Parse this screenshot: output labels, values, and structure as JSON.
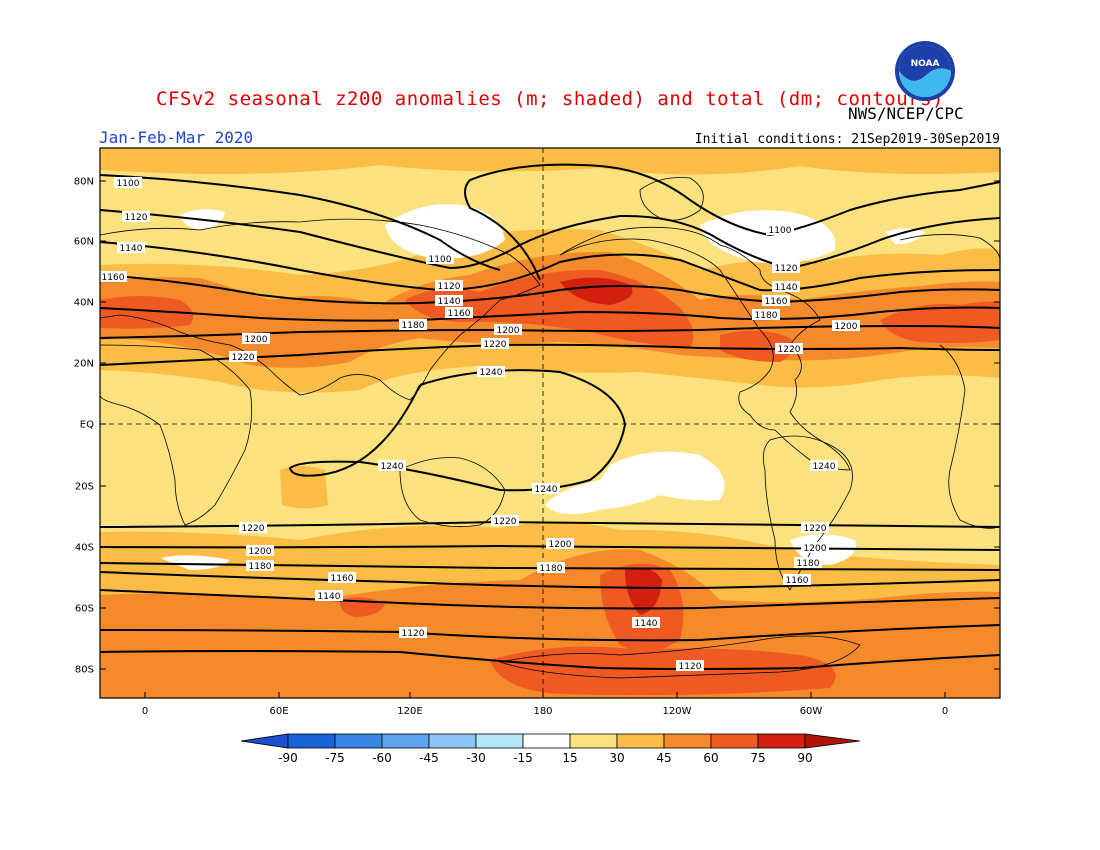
{
  "header": {
    "title": "CFSv2 seasonal z200 anomalies (m; shaded) and total (dm; contours)",
    "org": "NWS/NCEP/CPC",
    "season": "Jan-Feb-Mar 2020",
    "initial_conditions": "Initial conditions: 21Sep2019-30Sep2019",
    "logo_text": "NOAA"
  },
  "map": {
    "lat_labels": [
      "80N",
      "60N",
      "40N",
      "20N",
      "EQ",
      "20S",
      "40S",
      "60S",
      "80S"
    ],
    "lon_labels": [
      "0",
      "60E",
      "120E",
      "180",
      "120W",
      "60W",
      "0"
    ],
    "contours": [
      {
        "value": "1100"
      },
      {
        "value": "1120"
      },
      {
        "value": "1140"
      },
      {
        "value": "1160"
      },
      {
        "value": "1180"
      },
      {
        "value": "1200"
      },
      {
        "value": "1220"
      },
      {
        "value": "1240"
      }
    ],
    "colors": {
      "c15_30": "#fbe27e",
      "c30_45": "#fbbd45",
      "c45_60": "#f58a2c",
      "c60_75": "#ef5a22",
      "c75_90": "#d21f10",
      "cwhite": "#ffffff"
    }
  },
  "colorbar": {
    "ticks": [
      "-90",
      "-75",
      "-60",
      "-45",
      "-30",
      "-15",
      "15",
      "30",
      "45",
      "60",
      "75",
      "90"
    ],
    "colors": [
      "#1b62d6",
      "#3a86e4",
      "#5ea5ee",
      "#8cc5f4",
      "#b6e7f6",
      "#ffffff",
      "#fbe27e",
      "#fbbd45",
      "#f58a2c",
      "#ef5a22",
      "#d21f10"
    ],
    "low_end": "#1a4fd0",
    "high_end": "#b01408"
  }
}
